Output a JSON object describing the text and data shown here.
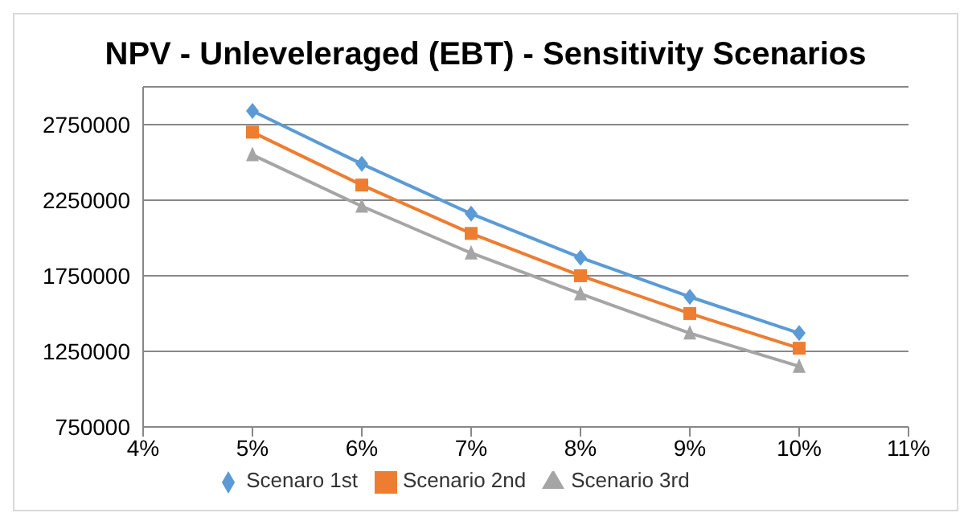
{
  "chart_data": {
    "type": "line",
    "title": "NPV - Unleveleraged (EBT) - Sensitivity Scenarios",
    "x": [
      5,
      6,
      7,
      8,
      9,
      10
    ],
    "series": [
      {
        "name": "Scenaro 1st",
        "color": "#5b9bd5",
        "marker": "diamond",
        "values": [
          2840000,
          2490000,
          2160000,
          1870000,
          1610000,
          1370000
        ]
      },
      {
        "name": "Scenario 2nd",
        "color": "#ed7d31",
        "marker": "square",
        "values": [
          2700000,
          2350000,
          2030000,
          1750000,
          1500000,
          1270000
        ]
      },
      {
        "name": "Scenario 3rd",
        "color": "#a5a5a5",
        "marker": "triangle",
        "values": [
          2550000,
          2210000,
          1900000,
          1630000,
          1370000,
          1150000
        ]
      }
    ],
    "xlim": [
      4,
      11
    ],
    "xticks": [
      {
        "value": 4,
        "label": "4%"
      },
      {
        "value": 5,
        "label": "5%"
      },
      {
        "value": 6,
        "label": "6%"
      },
      {
        "value": 7,
        "label": "7%"
      },
      {
        "value": 8,
        "label": "8%"
      },
      {
        "value": 9,
        "label": "9%"
      },
      {
        "value": 10,
        "label": "10%"
      },
      {
        "value": 11,
        "label": "11%"
      }
    ],
    "ylim": [
      750000,
      3000000
    ],
    "yticks": [
      750000,
      1250000,
      1750000,
      2250000,
      2750000
    ],
    "grid": "y",
    "legend": "bottom"
  }
}
